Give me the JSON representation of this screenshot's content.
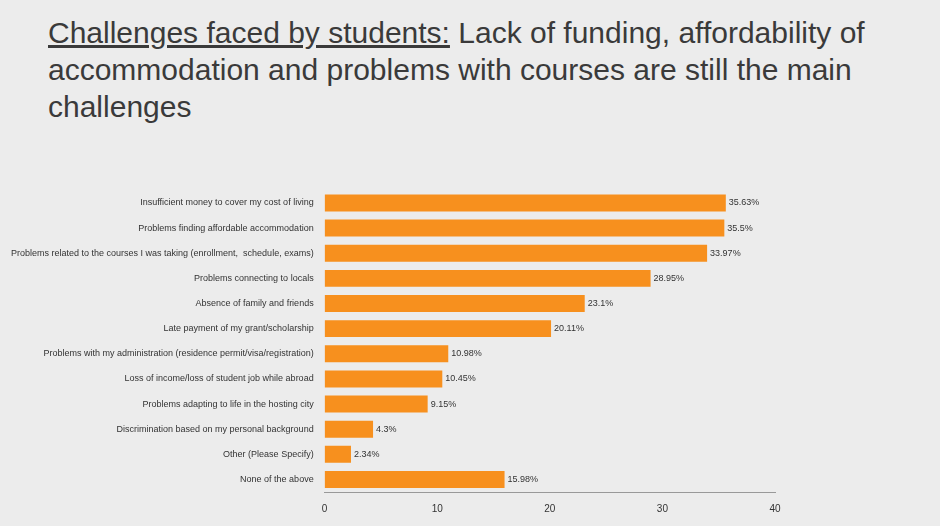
{
  "chart_data": {
    "type": "bar",
    "orientation": "horizontal",
    "title": "Challenges faced by students:",
    "subtitle": "Lack of funding, affordability of accommodation and problems with courses are still the main challenges",
    "categories": [
      "Insufficient money to cover my cost of living",
      "Problems finding affordable accommodation",
      "Problems related to the courses I was taking (enrollment,  schedule, exams)",
      "Problems connecting to locals",
      "Absence of family and friends",
      "Late payment of my grant/scholarship",
      "Problems with my administration (residence permit/visa/registration)",
      "Loss of income/loss of student job while abroad",
      "Problems adapting to life in the hosting city",
      "Discrimination based on my personal background",
      "Other (Please Specify)",
      "None of the above"
    ],
    "values": [
      35.63,
      35.5,
      33.97,
      28.95,
      23.1,
      20.11,
      10.98,
      10.45,
      9.15,
      4.3,
      2.34,
      15.98
    ],
    "value_labels": [
      "35.63%",
      "35.5%",
      "33.97%",
      "28.95%",
      "23.1%",
      "20.11%",
      "10.98%",
      "10.45%",
      "9.15%",
      "4.3%",
      "2.34%",
      "15.98%"
    ],
    "data_labels": true,
    "color": "#f7901e",
    "xlim": [
      0,
      40
    ],
    "xticks": [
      0,
      10,
      20,
      30,
      40
    ],
    "grid": false
  }
}
